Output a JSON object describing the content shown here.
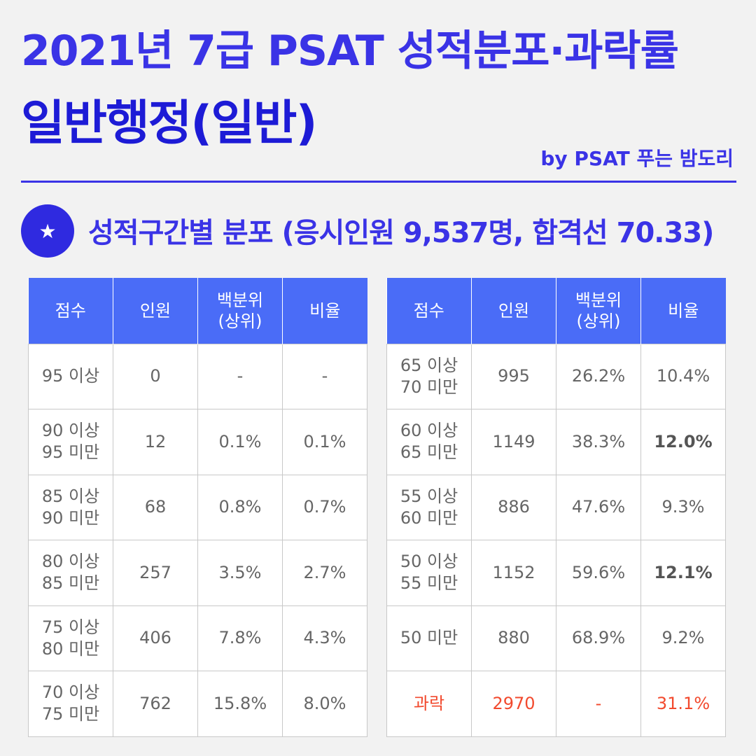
{
  "header": {
    "title_line1": "2021년 7급 PSAT 성적분포·과락률",
    "title_line2": "일반행정(일반)",
    "byline": "by PSAT 푸는 밤도리"
  },
  "section": {
    "icon": "star-icon",
    "icon_glyph": "★",
    "title": "성적구간별 분포 (응시인원 9,537명, 합격선 70.33)"
  },
  "table": {
    "columns": [
      "점수",
      "인원",
      "백분위\n(상위)",
      "비율"
    ],
    "left_rows": [
      {
        "score": "95 이상",
        "count": "0",
        "percentile": "-",
        "ratio": "-"
      },
      {
        "score": "90 이상\n95 미만",
        "count": "12",
        "percentile": "0.1%",
        "ratio": "0.1%"
      },
      {
        "score": "85 이상\n90 미만",
        "count": "68",
        "percentile": "0.8%",
        "ratio": "0.7%"
      },
      {
        "score": "80 이상\n85 미만",
        "count": "257",
        "percentile": "3.5%",
        "ratio": "2.7%"
      },
      {
        "score": "75 이상\n80 미만",
        "count": "406",
        "percentile": "7.8%",
        "ratio": "4.3%"
      },
      {
        "score": "70 이상\n75 미만",
        "count": "762",
        "percentile": "15.8%",
        "ratio": "8.0%"
      }
    ],
    "right_rows": [
      {
        "score": "65 이상\n70 미만",
        "count": "995",
        "percentile": "26.2%",
        "ratio": "10.4%"
      },
      {
        "score": "60 이상\n65 미만",
        "count": "1149",
        "percentile": "38.3%",
        "ratio": "12.0%",
        "ratio_bold": true
      },
      {
        "score": "55 이상\n60 미만",
        "count": "886",
        "percentile": "47.6%",
        "ratio": "9.3%"
      },
      {
        "score": "50 이상\n55 미만",
        "count": "1152",
        "percentile": "59.6%",
        "ratio": "12.1%",
        "ratio_bold": true
      },
      {
        "score": "50 미만",
        "count": "880",
        "percentile": "68.9%",
        "ratio": "9.2%"
      },
      {
        "score": "과락",
        "count": "2970",
        "percentile": "-",
        "ratio": "31.1%",
        "highlight": true
      }
    ]
  },
  "colors": {
    "title_blue": "#3a33e6",
    "header_blue": "#4a6cf7",
    "fail_red": "#f24a2e"
  }
}
